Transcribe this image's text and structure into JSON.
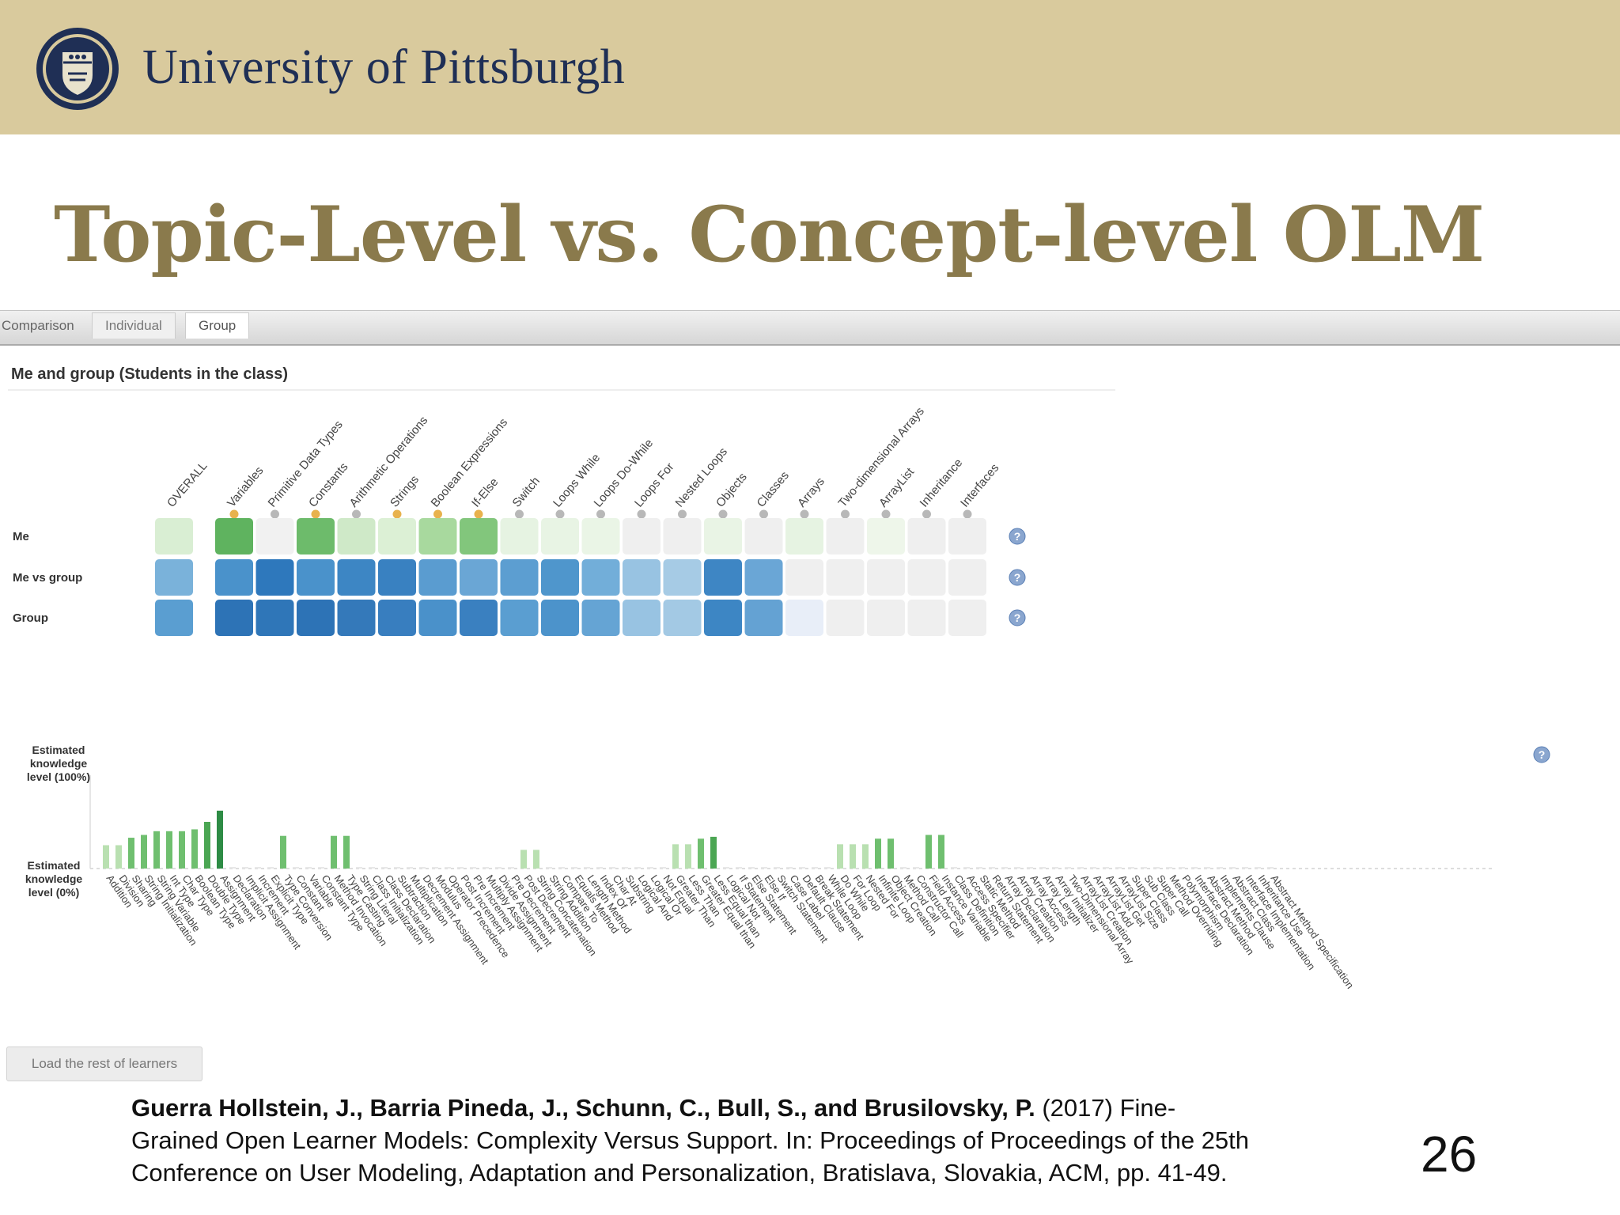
{
  "header": {
    "university": "University of Pittsburgh",
    "seal_icon": "university-seal-icon",
    "background_color": "#d9ca9d",
    "text_color": "#1f2f55"
  },
  "slide": {
    "title": "Topic-Level vs. Concept-level OLM",
    "title_color": "#8a7a4c",
    "page_number": "26"
  },
  "tabs": {
    "label": "Comparison",
    "items": [
      {
        "label": "Individual",
        "active": false
      },
      {
        "label": "Group",
        "active": true
      }
    ]
  },
  "panel": {
    "title": "Me and group (Students in the class)"
  },
  "grid": {
    "topics": [
      "OVERALL",
      "Variables",
      "Primitive Data Types",
      "Constants",
      "Arithmetic Operations",
      "Strings",
      "Boolean Expressions",
      "If-Else",
      "Switch",
      "Loops While",
      "Loops Do-While",
      "Loops For",
      "Nested Loops",
      "Objects",
      "Classes",
      "Arrays",
      "Two-dimensional Arrays",
      "ArrayList",
      "Inheritance",
      "Interfaces"
    ],
    "topic_marker_colors": [
      "none",
      "#e8b24d",
      "#b8b8b8",
      "#e8b24d",
      "#b8b8b8",
      "#e8b24d",
      "#e8b24d",
      "#e8b24d",
      "#b8b8b8",
      "#b8b8b8",
      "#b8b8b8",
      "#b8b8b8",
      "#b8b8b8",
      "#b8b8b8",
      "#b8b8b8",
      "#b8b8b8",
      "#b8b8b8",
      "#b8b8b8",
      "#b8b8b8",
      "#b8b8b8"
    ],
    "rows": [
      {
        "label": "Me",
        "colors": [
          "#d9eed3",
          "#5fb35f",
          "#f1f1f1",
          "#6dbb6b",
          "#cfe9c8",
          "#dcf0d5",
          "#a8d99e",
          "#82c67c",
          "#e6f3e2",
          "#e8f4e4",
          "#eaf5e6",
          "#efefef",
          "#efefef",
          "#e9f4e5",
          "#efefef",
          "#e6f3e2",
          "#efefef",
          "#eef6ea",
          "#efefef",
          "#efefef"
        ]
      },
      {
        "label": "Me vs group",
        "colors": [
          "#7ab2da",
          "#4a92cb",
          "#2e78bc",
          "#4a92cb",
          "#3d86c4",
          "#3981c1",
          "#5a9cd0",
          "#6aa6d5",
          "#5c9ed1",
          "#4f96cc",
          "#72aed9",
          "#98c3e2",
          "#a6cbe5",
          "#3e86c4",
          "#6aa6d6",
          "#efefef",
          "#efefef",
          "#efefef",
          "#efefef",
          "#efefef"
        ]
      },
      {
        "label": "Group",
        "colors": [
          "#5a9ed1",
          "#2d73b6",
          "#2f76b8",
          "#2d73b6",
          "#3479ba",
          "#387ebf",
          "#4a91ca",
          "#3a80c0",
          "#5a9ed1",
          "#4c93cb",
          "#65a4d4",
          "#98c3e2",
          "#a3c9e4",
          "#3d86c4",
          "#64a2d3",
          "#e8eef8",
          "#efefef",
          "#efefef",
          "#efefef",
          "#efefef"
        ]
      }
    ]
  },
  "chart_data": {
    "type": "bar",
    "ylabel_top": "Estimated knowledge level (100%)",
    "ylabel_bottom": "Estimated knowledge level (0%)",
    "ylim": [
      0,
      100
    ],
    "categories": [
      "Addition",
      "Division",
      "Sharing",
      "String Initialization",
      "String Variable",
      "Int Type",
      "Char Type",
      "Boolean Type",
      "Double Type",
      "Assignment",
      "Declaration",
      "Implicit Assignment",
      "Increment",
      "Explicit Type",
      "Type Conversion",
      "Constant",
      "Variable",
      "Constant Type",
      "Method Invocation",
      "Type Casting",
      "String Literal",
      "Class Initialization",
      "Class Declaration",
      "Subtraction",
      "Multiplication",
      "Decrement Assignment",
      "Modulus",
      "Operator Precedence",
      "Post Increment",
      "Pre Increment",
      "Multiply Assignment",
      "Divide Assignment",
      "Pre Decrement",
      "Post Decrement",
      "String Concatenation",
      "String Addition",
      "Compare To",
      "Equals Method",
      "Length Method",
      "Index Of",
      "Char At",
      "Substring",
      "Logical And",
      "Logical Or",
      "Not Equal",
      "Greater Than",
      "Less Than",
      "Greater Equal than",
      "Less Equal than",
      "Logical Not",
      "If Statement",
      "Else Statement",
      "Else If",
      "Switch Statement",
      "Case Label",
      "Default Clause",
      "Break Statement",
      "While Loop",
      "Do While",
      "For Loop",
      "Nested For",
      "Infinite Loop",
      "Object Creation",
      "Method Call",
      "Constructor Call",
      "Field Access",
      "Instance Variable",
      "Class Definition",
      "Access Specifier",
      "Static Method",
      "Return Statement",
      "Array Declaration",
      "Array Creation",
      "Array Access",
      "Array Length",
      "Array Initializer",
      "Two-Dimensional Array",
      "ArrayList Creation",
      "ArrayList Add",
      "ArrayList Get",
      "ArrayList Size",
      "Super Class",
      "Sub Class",
      "Super Call",
      "Method Overriding",
      "Polymorphism",
      "Interface Declaration",
      "Abstract Method",
      "Implements Clause",
      "Abstract Class",
      "Interface Implementation",
      "Inheritance Use",
      "Abstract Method Specification"
    ],
    "values": [
      25,
      25,
      33,
      36,
      40,
      40,
      40,
      42,
      50,
      62,
      0,
      0,
      0,
      0,
      35,
      0,
      0,
      0,
      35,
      35,
      0,
      0,
      0,
      0,
      0,
      0,
      0,
      0,
      0,
      0,
      0,
      0,
      0,
      20,
      20,
      0,
      0,
      0,
      0,
      0,
      0,
      0,
      0,
      0,
      0,
      26,
      26,
      32,
      34,
      0,
      0,
      0,
      0,
      0,
      0,
      0,
      0,
      0,
      26,
      26,
      26,
      32,
      32,
      0,
      0,
      36,
      36,
      0,
      0,
      0,
      0,
      0,
      0,
      0,
      0,
      0,
      0,
      0,
      0,
      0,
      0,
      0,
      0,
      0,
      0,
      0,
      0,
      0,
      0,
      0,
      0,
      0,
      0
    ],
    "shades": [
      1,
      1,
      2,
      2,
      2,
      2,
      2,
      2,
      3,
      4,
      0,
      0,
      0,
      0,
      2,
      0,
      0,
      0,
      2,
      2,
      0,
      0,
      0,
      0,
      0,
      0,
      0,
      0,
      0,
      0,
      0,
      0,
      0,
      1,
      1,
      0,
      0,
      0,
      0,
      0,
      0,
      0,
      0,
      0,
      0,
      1,
      1,
      2,
      3,
      0,
      0,
      0,
      0,
      0,
      0,
      0,
      0,
      0,
      1,
      1,
      1,
      2,
      2,
      0,
      0,
      2,
      2,
      0,
      0,
      0,
      0,
      0,
      0,
      0,
      0,
      0,
      0,
      0,
      0,
      0,
      0,
      0,
      0,
      0,
      0,
      0,
      0,
      0,
      0,
      0,
      0,
      0,
      0
    ],
    "shade_colors": [
      "#e8e8e8",
      "#b9e0b1",
      "#6fbf6f",
      "#4ba653",
      "#2e8c45"
    ]
  },
  "footer": {
    "load_button": "Load the rest of learners",
    "citation_authors": "Guerra Hollstein, J., Barria Pineda, J., Schunn, C., Bull, S., and Brusilovsky, P.",
    "citation_line1_rest": " (2017) Fine-",
    "citation_line2": "Grained Open Learner Models: Complexity Versus Support. In:  Proceedings of Proceedings of the 25th",
    "citation_line3": "Conference on User Modeling, Adaptation and Personalization, Bratislava, Slovakia, ACM, pp. 41-49."
  },
  "icons": {
    "help_icon": "help-icon",
    "topic_marker_icon": "topic-progress-marker-icon"
  }
}
